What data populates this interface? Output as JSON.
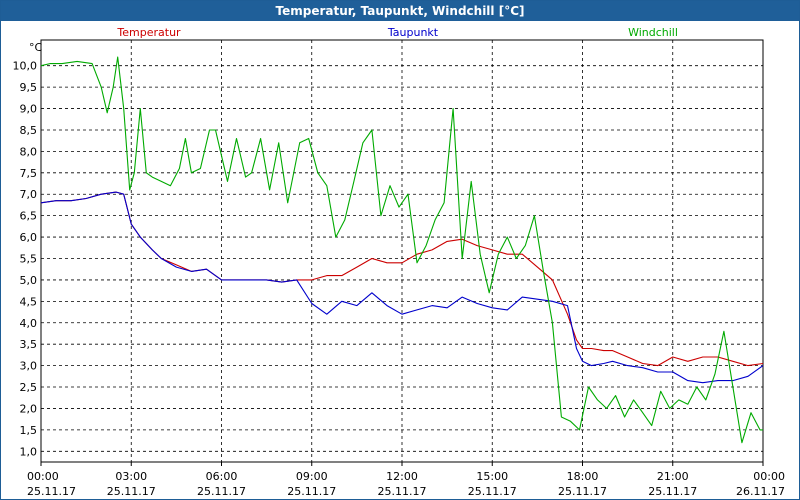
{
  "window": {
    "title": "Temperatur, Taupunkt, Windchill [°C]"
  },
  "chart_data": {
    "type": "line",
    "title": "Temperatur, Taupunkt, Windchill [°C]",
    "ylabel": "°C",
    "ylim": [
      0.75,
      10.6
    ],
    "xlim": [
      0,
      24
    ],
    "grid": true,
    "legend_position": "top",
    "y_ticks": [
      "1,0",
      "1,5",
      "2,0",
      "2,5",
      "3,0",
      "3,5",
      "4,0",
      "4,5",
      "5,0",
      "5,5",
      "6,0",
      "6,5",
      "7,0",
      "7,5",
      "8,0",
      "8,5",
      "9,0",
      "9,5",
      "10,0"
    ],
    "y_tick_values": [
      1.0,
      1.5,
      2.0,
      2.5,
      3.0,
      3.5,
      4.0,
      4.5,
      5.0,
      5.5,
      6.0,
      6.5,
      7.0,
      7.5,
      8.0,
      8.5,
      9.0,
      9.5,
      10.0
    ],
    "x_ticks": [
      {
        "hours": 0,
        "time": "00:00",
        "date": "25.11.17"
      },
      {
        "hours": 3,
        "time": "03:00",
        "date": "25.11.17"
      },
      {
        "hours": 6,
        "time": "06:00",
        "date": "25.11.17"
      },
      {
        "hours": 9,
        "time": "09:00",
        "date": "25.11.17"
      },
      {
        "hours": 12,
        "time": "12:00",
        "date": "25.11.17"
      },
      {
        "hours": 15,
        "time": "15:00",
        "date": "25.11.17"
      },
      {
        "hours": 18,
        "time": "18:00",
        "date": "25.11.17"
      },
      {
        "hours": 21,
        "time": "21:00",
        "date": "25.11.17"
      },
      {
        "hours": 24,
        "time": "00:00",
        "date": "26.11.17"
      }
    ],
    "series": [
      {
        "name": "Temperatur",
        "color": "#cc0000",
        "x": [
          0,
          0.5,
          1,
          1.5,
          2,
          2.5,
          2.75,
          3,
          3.3,
          3.7,
          4,
          4.5,
          5,
          5.5,
          6,
          6.5,
          7,
          7.5,
          8,
          8.5,
          9,
          9.5,
          10,
          10.5,
          11,
          11.5,
          12,
          12.5,
          13,
          13.5,
          14,
          14.5,
          15,
          15.5,
          16,
          16.5,
          17,
          17.5,
          17.8,
          18,
          18.3,
          18.7,
          19,
          19.5,
          20,
          20.5,
          21,
          21.5,
          22,
          22.5,
          23,
          23.5,
          24
        ],
        "y": [
          6.8,
          6.85,
          6.85,
          6.9,
          7.0,
          7.05,
          7.0,
          6.3,
          6.0,
          5.7,
          5.5,
          5.35,
          5.2,
          5.25,
          5.0,
          5.0,
          5.0,
          5.0,
          4.95,
          5.0,
          5.0,
          5.1,
          5.1,
          5.3,
          5.5,
          5.4,
          5.4,
          5.6,
          5.7,
          5.9,
          5.95,
          5.8,
          5.7,
          5.6,
          5.6,
          5.3,
          5.0,
          4.2,
          3.6,
          3.4,
          3.4,
          3.35,
          3.35,
          3.2,
          3.05,
          3.0,
          3.2,
          3.1,
          3.2,
          3.2,
          3.1,
          3.0,
          3.05
        ]
      },
      {
        "name": "Taupunkt",
        "color": "#0000cc",
        "x": [
          0,
          0.5,
          1,
          1.5,
          2,
          2.5,
          2.75,
          3,
          3.3,
          3.7,
          4,
          4.5,
          5,
          5.5,
          6,
          6.5,
          7,
          7.5,
          8,
          8.5,
          9,
          9.5,
          10,
          10.5,
          11,
          11.5,
          12,
          12.5,
          13,
          13.5,
          14,
          14.5,
          15,
          15.5,
          16,
          16.5,
          17,
          17.5,
          17.8,
          18,
          18.3,
          18.7,
          19,
          19.5,
          20,
          20.5,
          21,
          21.5,
          22,
          22.5,
          23,
          23.5,
          24
        ],
        "y": [
          6.8,
          6.85,
          6.85,
          6.9,
          7.0,
          7.05,
          7.0,
          6.3,
          6.0,
          5.7,
          5.5,
          5.3,
          5.2,
          5.25,
          5.0,
          5.0,
          5.0,
          5.0,
          4.95,
          5.0,
          4.45,
          4.2,
          4.5,
          4.4,
          4.7,
          4.4,
          4.2,
          4.3,
          4.4,
          4.35,
          4.6,
          4.45,
          4.35,
          4.3,
          4.6,
          4.55,
          4.5,
          4.4,
          3.4,
          3.1,
          3.0,
          3.05,
          3.1,
          3.0,
          2.95,
          2.85,
          2.85,
          2.65,
          2.6,
          2.65,
          2.65,
          2.75,
          3.0
        ]
      },
      {
        "name": "Windchill",
        "color": "#00aa00",
        "x": [
          0,
          0.3,
          0.7,
          1.2,
          1.7,
          2.0,
          2.2,
          2.4,
          2.55,
          2.75,
          2.95,
          3.1,
          3.3,
          3.5,
          3.7,
          4.0,
          4.3,
          4.6,
          4.8,
          5.0,
          5.3,
          5.6,
          5.8,
          6.2,
          6.5,
          6.8,
          7.0,
          7.3,
          7.6,
          7.9,
          8.2,
          8.6,
          8.9,
          9.2,
          9.5,
          9.8,
          10.1,
          10.4,
          10.7,
          11.0,
          11.3,
          11.6,
          11.9,
          12.2,
          12.5,
          12.8,
          13.1,
          13.4,
          13.7,
          14.0,
          14.3,
          14.6,
          14.9,
          15.2,
          15.5,
          15.8,
          16.1,
          16.4,
          16.7,
          17.0,
          17.3,
          17.6,
          17.9,
          18.2,
          18.5,
          18.8,
          19.1,
          19.4,
          19.7,
          20.0,
          20.3,
          20.6,
          20.9,
          21.2,
          21.5,
          21.8,
          22.1,
          22.4,
          22.7,
          23.0,
          23.3,
          23.6,
          23.9,
          24.0
        ],
        "y": [
          10.0,
          10.05,
          10.05,
          10.1,
          10.05,
          9.5,
          8.9,
          9.5,
          10.2,
          9.0,
          7.1,
          7.5,
          9.0,
          7.5,
          7.4,
          7.3,
          7.2,
          7.6,
          8.3,
          7.5,
          7.6,
          8.5,
          8.5,
          7.3,
          8.3,
          7.4,
          7.5,
          8.3,
          7.1,
          8.2,
          6.8,
          8.2,
          8.3,
          7.5,
          7.2,
          6.0,
          6.4,
          7.3,
          8.2,
          8.5,
          6.5,
          7.2,
          6.7,
          7.0,
          5.4,
          5.8,
          6.4,
          6.8,
          9.0,
          5.5,
          7.3,
          5.6,
          4.7,
          5.6,
          6.0,
          5.5,
          5.8,
          6.5,
          5.2,
          4.0,
          1.8,
          1.7,
          1.5,
          2.5,
          2.2,
          2.0,
          2.3,
          1.8,
          2.2,
          1.9,
          1.6,
          2.4,
          2.0,
          2.2,
          2.1,
          2.5,
          2.2,
          2.8,
          3.8,
          2.5,
          1.2,
          1.9,
          1.5,
          1.5
        ]
      }
    ]
  }
}
